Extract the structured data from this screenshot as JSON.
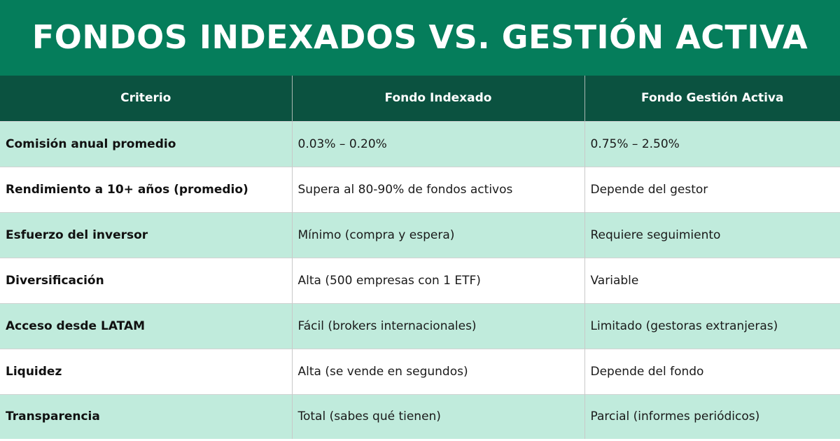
{
  "title": "FONDOS INDEXADOS VS. GESTIÓN ACTIVA",
  "colors": {
    "title_bg": "#057d5b",
    "header_bg": "#0b5240",
    "alt_row_bg": "#c0ebdc",
    "plain_row_bg": "#ffffff"
  },
  "table": {
    "headers": [
      "Criterio",
      "Fondo Indexado",
      "Fondo Gestión Activa"
    ],
    "rows": [
      [
        "Comisión anual promedio",
        "0.03% – 0.20%",
        "0.75% – 2.50%"
      ],
      [
        "Rendimiento a 10+ años (promedio)",
        "Supera al 80-90% de fondos activos",
        "Depende del gestor"
      ],
      [
        "Esfuerzo del inversor",
        "Mínimo (compra y espera)",
        "Requiere seguimiento"
      ],
      [
        "Diversificación",
        "Alta (500 empresas con 1 ETF)",
        "Variable"
      ],
      [
        "Acceso desde LATAM",
        "Fácil (brokers internacionales)",
        "Limitado (gestoras extranjeras)"
      ],
      [
        "Liquidez",
        "Alta (se vende en segundos)",
        "Depende del fondo"
      ],
      [
        "Transparencia",
        "Total (sabes qué tienen)",
        "Parcial (informes periódicos)"
      ]
    ]
  }
}
